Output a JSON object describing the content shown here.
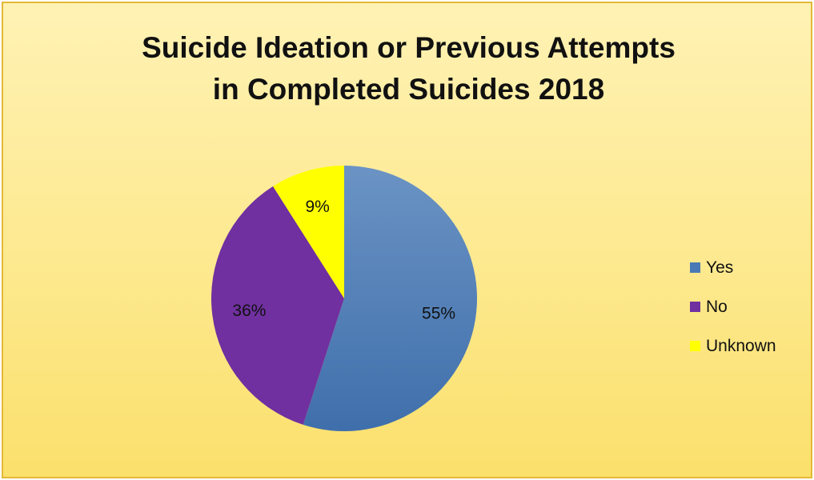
{
  "chart_data": {
    "type": "pie",
    "title_lines": [
      "Suicide Ideation or Previous Attempts",
      "in Completed Suicides 2018"
    ],
    "categories": [
      "Yes",
      "No",
      "Unknown"
    ],
    "values": [
      55,
      36,
      9
    ],
    "labels": [
      "55%",
      "36%",
      "9%"
    ],
    "colors": [
      "#4a7ab5",
      "#7030a0",
      "#ffff00"
    ],
    "start_angle_deg": 0,
    "direction": "clockwise",
    "legend_position": "right"
  }
}
